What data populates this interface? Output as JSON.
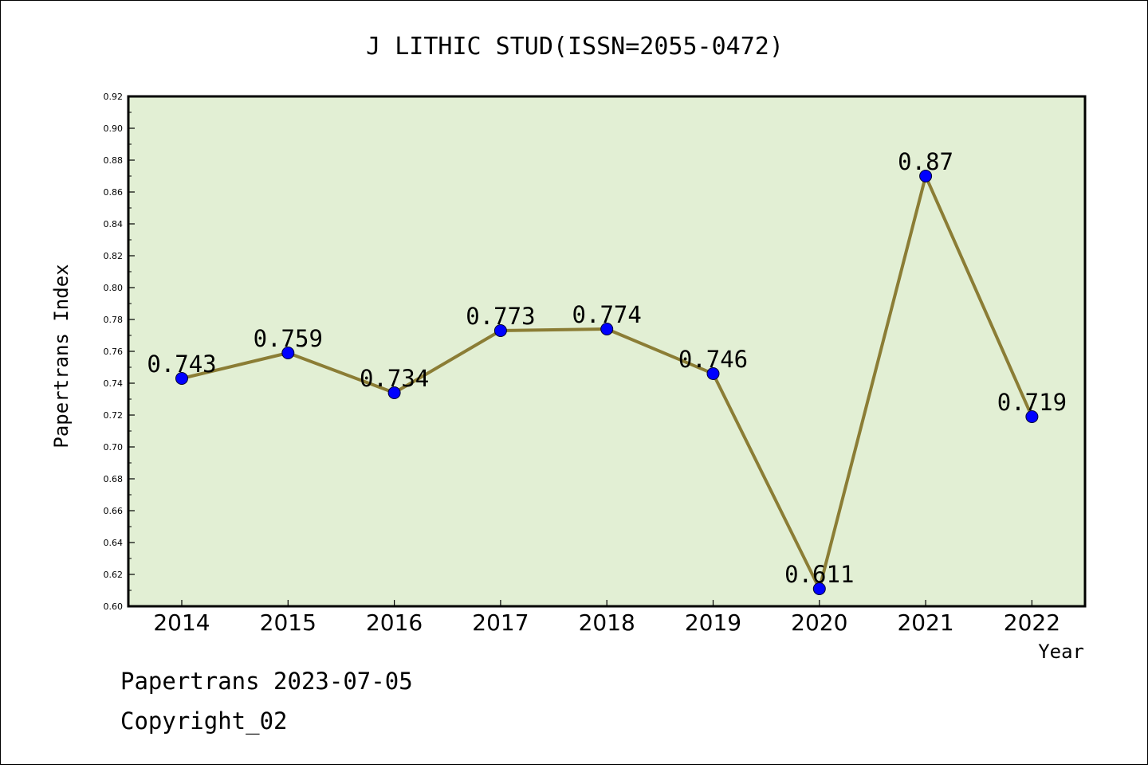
{
  "chart_data": {
    "type": "line",
    "title": "J LITHIC STUD(ISSN=2055-0472)",
    "xlabel": "Year",
    "ylabel": "Papertrans Index",
    "categories": [
      "2014",
      "2015",
      "2016",
      "2017",
      "2018",
      "2019",
      "2020",
      "2021",
      "2022"
    ],
    "series": [
      {
        "values": [
          0.743,
          0.759,
          0.734,
          0.773,
          0.774,
          0.746,
          0.611,
          0.87,
          0.719
        ],
        "data_labels": [
          "0.743",
          "0.759",
          "0.734",
          "0.773",
          "0.774",
          "0.746",
          "0.611",
          "0.87",
          "0.719"
        ],
        "line_color": "#8b7d35",
        "marker_color": "#0000ff"
      }
    ],
    "ylim": [
      0.6,
      0.92
    ],
    "yticks": [
      "0.60",
      "0.62",
      "0.64",
      "0.66",
      "0.68",
      "0.70",
      "0.72",
      "0.74",
      "0.76",
      "0.78",
      "0.80",
      "0.82",
      "0.84",
      "0.86",
      "0.88",
      "0.90",
      "0.92"
    ],
    "grid": false,
    "legend": "none",
    "plot_background": "#e2efd4"
  },
  "footer": {
    "line1": "Papertrans 2023-07-05",
    "line2": "Copyright_02"
  }
}
